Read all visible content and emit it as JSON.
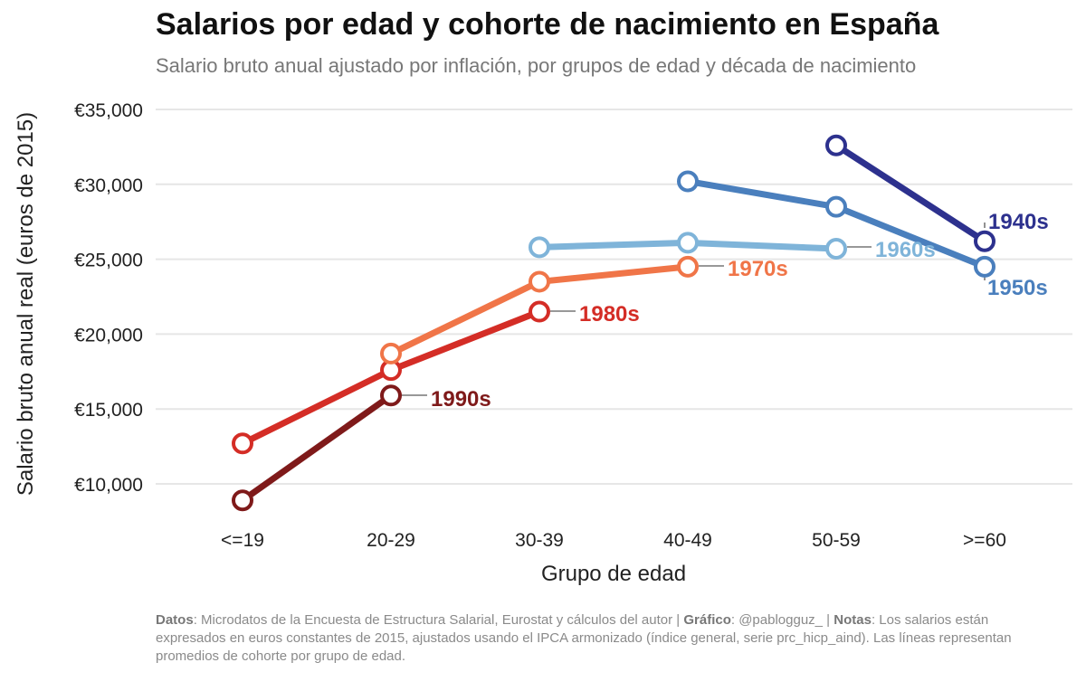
{
  "header": {
    "title": "Salarios por edad y cohorte de nacimiento en España",
    "subtitle": "Salario bruto anual ajustado por inflación, por grupos de edad y década de nacimiento"
  },
  "caption": {
    "datos_label": "Datos",
    "datos_text": ": Microdatos de la Encuesta de Estructura Salarial, Eurostat y cálculos del autor | ",
    "grafico_label": "Gráfico",
    "grafico_text": ": @pablogguz_ | ",
    "notas_label": "Notas",
    "notas_text": ": Los salarios están expresados en euros constantes de 2015, ajustados usando el IPCA armonizado (índice general, serie prc_hicp_aind). Las líneas representan promedios de cohorte por grupo de edad."
  },
  "chart_data": {
    "type": "line",
    "title": "Salarios por edad y cohorte de nacimiento en España",
    "xlabel": "Grupo de edad",
    "ylabel": "Salario bruto anual real (euros de 2015)",
    "categories": [
      "<=19",
      "20-29",
      "30-39",
      "40-49",
      "50-59",
      ">=60"
    ],
    "ylim": [
      8000,
      35000
    ],
    "yticks": [
      10000,
      15000,
      20000,
      25000,
      30000,
      35000
    ],
    "ytick_labels": [
      "€10,000",
      "€15,000",
      "€20,000",
      "€25,000",
      "€30,000",
      "€35,000"
    ],
    "grid": true,
    "series": [
      {
        "name": "1990s",
        "color": "#7f1a1a",
        "values": [
          8900,
          15900,
          null,
          null,
          null,
          null
        ]
      },
      {
        "name": "1980s",
        "color": "#d42d26",
        "values": [
          12700,
          17600,
          21500,
          null,
          null,
          null
        ]
      },
      {
        "name": "1970s",
        "color": "#f07548",
        "values": [
          null,
          18700,
          23500,
          24500,
          null,
          null
        ]
      },
      {
        "name": "1960s",
        "color": "#7fb4d9",
        "values": [
          null,
          null,
          25800,
          26100,
          25700,
          null
        ]
      },
      {
        "name": "1950s",
        "color": "#4a7fbd",
        "values": [
          null,
          null,
          null,
          30200,
          28500,
          24500
        ]
      },
      {
        "name": "1940s",
        "color": "#2d318e",
        "values": [
          null,
          null,
          null,
          null,
          32600,
          26200
        ]
      }
    ]
  }
}
